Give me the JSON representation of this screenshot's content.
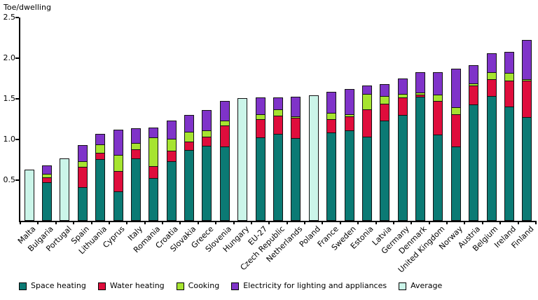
{
  "chart_data": {
    "type": "bar",
    "subtype": "stacked-vertical",
    "title": "Toe/dwelling",
    "ylabel": "Toe/dwelling",
    "xlabel": "",
    "ylim": [
      0,
      2.5
    ],
    "yticks": [
      "0.5",
      "1.0",
      "1.5",
      "2.0",
      "2.5"
    ],
    "ytick_values": [
      0.5,
      1.0,
      1.5,
      2.0,
      2.5
    ],
    "grid": false,
    "legend_position": "bottom",
    "series_order": [
      "space_heating",
      "water_heating",
      "cooking",
      "electricity"
    ],
    "series": [
      {
        "key": "space_heating",
        "name": "Space heating",
        "color": "#0B7A74"
      },
      {
        "key": "water_heating",
        "name": "Water heating",
        "color": "#DF0D3C"
      },
      {
        "key": "cooking",
        "name": "Cooking",
        "color": "#A6E430"
      },
      {
        "key": "electricity",
        "name": "Electricity for lighting and appliances",
        "color": "#7F33C9"
      }
    ],
    "average_series": {
      "key": "average",
      "name": "Average",
      "color": "#CBF5E9"
    },
    "countries": [
      {
        "label": "Malta",
        "average": 0.63
      },
      {
        "label": "Bulgaria",
        "values": [
          0.47,
          0.06,
          0.05,
          0.1
        ]
      },
      {
        "label": "Portugal",
        "average": 0.77
      },
      {
        "label": "Spain",
        "values": [
          0.41,
          0.25,
          0.07,
          0.2
        ]
      },
      {
        "label": "Lithuania",
        "values": [
          0.76,
          0.08,
          0.1,
          0.13
        ]
      },
      {
        "label": "Cyprus",
        "values": [
          0.36,
          0.25,
          0.2,
          0.31
        ]
      },
      {
        "label": "Italy",
        "values": [
          0.77,
          0.11,
          0.08,
          0.18
        ]
      },
      {
        "label": "Romania",
        "values": [
          0.53,
          0.15,
          0.35,
          0.12
        ]
      },
      {
        "label": "Croatia",
        "values": [
          0.73,
          0.13,
          0.15,
          0.22
        ]
      },
      {
        "label": "Slovakia",
        "values": [
          0.87,
          0.1,
          0.12,
          0.21
        ]
      },
      {
        "label": "Greece",
        "values": [
          0.92,
          0.11,
          0.08,
          0.25
        ]
      },
      {
        "label": "Slovenia",
        "values": [
          0.91,
          0.26,
          0.06,
          0.24
        ]
      },
      {
        "label": "Hungary",
        "average": 1.51
      },
      {
        "label": "EU-27",
        "values": [
          1.03,
          0.22,
          0.06,
          0.21
        ]
      },
      {
        "label": "Czech Republic",
        "values": [
          1.07,
          0.23,
          0.07,
          0.15
        ]
      },
      {
        "label": "Netherlands",
        "values": [
          1.02,
          0.25,
          0.02,
          0.24
        ]
      },
      {
        "label": "Poland",
        "average": 1.54
      },
      {
        "label": "France",
        "values": [
          1.09,
          0.16,
          0.08,
          0.26
        ]
      },
      {
        "label": "Sweden",
        "values": [
          1.11,
          0.17,
          0.03,
          0.31
        ]
      },
      {
        "label": "Estonia",
        "values": [
          1.03,
          0.34,
          0.19,
          0.1
        ]
      },
      {
        "label": "Latvia",
        "values": [
          1.23,
          0.21,
          0.09,
          0.15
        ]
      },
      {
        "label": "Germany",
        "values": [
          1.3,
          0.22,
          0.04,
          0.19
        ]
      },
      {
        "label": "Denmark",
        "values": [
          1.53,
          0.02,
          0.03,
          0.25
        ]
      },
      {
        "label": "United Kingdom",
        "values": [
          1.06,
          0.42,
          0.07,
          0.28
        ]
      },
      {
        "label": "Norway",
        "values": [
          0.91,
          0.4,
          0.09,
          0.47
        ]
      },
      {
        "label": "Austria",
        "values": [
          1.43,
          0.23,
          0.03,
          0.22
        ]
      },
      {
        "label": "Belgium",
        "values": [
          1.53,
          0.21,
          0.09,
          0.23
        ]
      },
      {
        "label": "Ireland",
        "values": [
          1.41,
          0.32,
          0.09,
          0.26
        ]
      },
      {
        "label": "Finland",
        "values": [
          1.27,
          0.45,
          0.02,
          0.48
        ]
      }
    ],
    "legend": [
      "Space heating",
      "Water heating",
      "Cooking",
      "Electricity for lighting and appliances",
      "Average"
    ]
  }
}
